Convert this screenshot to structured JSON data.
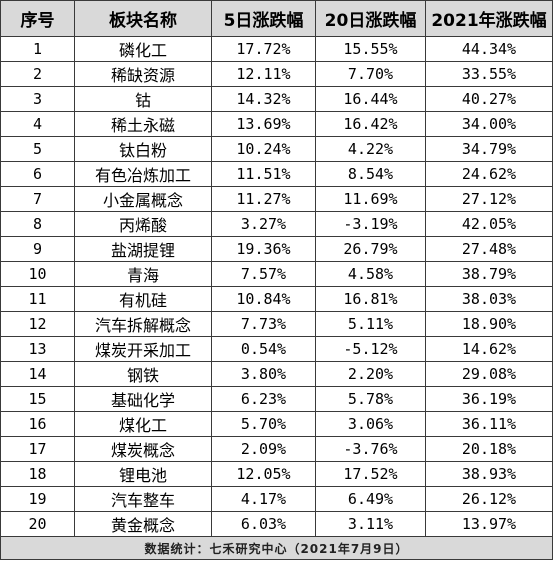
{
  "table": {
    "headers": [
      "序号",
      "板块名称",
      "5日涨跌幅",
      "20日涨跌幅",
      "2021年涨跌幅"
    ],
    "rows": [
      [
        "1",
        "磷化工",
        "17.72%",
        "15.55%",
        "44.34%"
      ],
      [
        "2",
        "稀缺资源",
        "12.11%",
        "7.70%",
        "33.55%"
      ],
      [
        "3",
        "钴",
        "14.32%",
        "16.44%",
        "40.27%"
      ],
      [
        "4",
        "稀土永磁",
        "13.69%",
        "16.42%",
        "34.00%"
      ],
      [
        "5",
        "钛白粉",
        "10.24%",
        "4.22%",
        "34.79%"
      ],
      [
        "6",
        "有色冶炼加工",
        "11.51%",
        "8.54%",
        "24.62%"
      ],
      [
        "7",
        "小金属概念",
        "11.27%",
        "11.69%",
        "27.12%"
      ],
      [
        "8",
        "丙烯酸",
        "3.27%",
        "-3.19%",
        "42.05%"
      ],
      [
        "9",
        "盐湖提锂",
        "19.36%",
        "26.79%",
        "27.48%"
      ],
      [
        "10",
        "青海",
        "7.57%",
        "4.58%",
        "38.79%"
      ],
      [
        "11",
        "有机硅",
        "10.84%",
        "16.81%",
        "38.03%"
      ],
      [
        "12",
        "汽车拆解概念",
        "7.73%",
        "5.11%",
        "18.90%"
      ],
      [
        "13",
        "煤炭开采加工",
        "0.54%",
        "-5.12%",
        "14.62%"
      ],
      [
        "14",
        "钢铁",
        "3.80%",
        "2.20%",
        "29.08%"
      ],
      [
        "15",
        "基础化学",
        "6.23%",
        "5.78%",
        "36.19%"
      ],
      [
        "16",
        "煤化工",
        "5.70%",
        "3.06%",
        "36.11%"
      ],
      [
        "17",
        "煤炭概念",
        "2.09%",
        "-3.76%",
        "20.18%"
      ],
      [
        "18",
        "锂电池",
        "12.05%",
        "17.52%",
        "38.93%"
      ],
      [
        "19",
        "汽车整车",
        "4.17%",
        "6.49%",
        "26.12%"
      ],
      [
        "20",
        "黄金概念",
        "6.03%",
        "3.11%",
        "13.97%"
      ]
    ],
    "footer": "数据统计：七禾研究中心（2021年7月9日）"
  },
  "colors": {
    "header_bg": "#d9d9d9",
    "footer_bg": "#d9d9d9",
    "border": "#3a3a3a",
    "text": "#000000"
  }
}
